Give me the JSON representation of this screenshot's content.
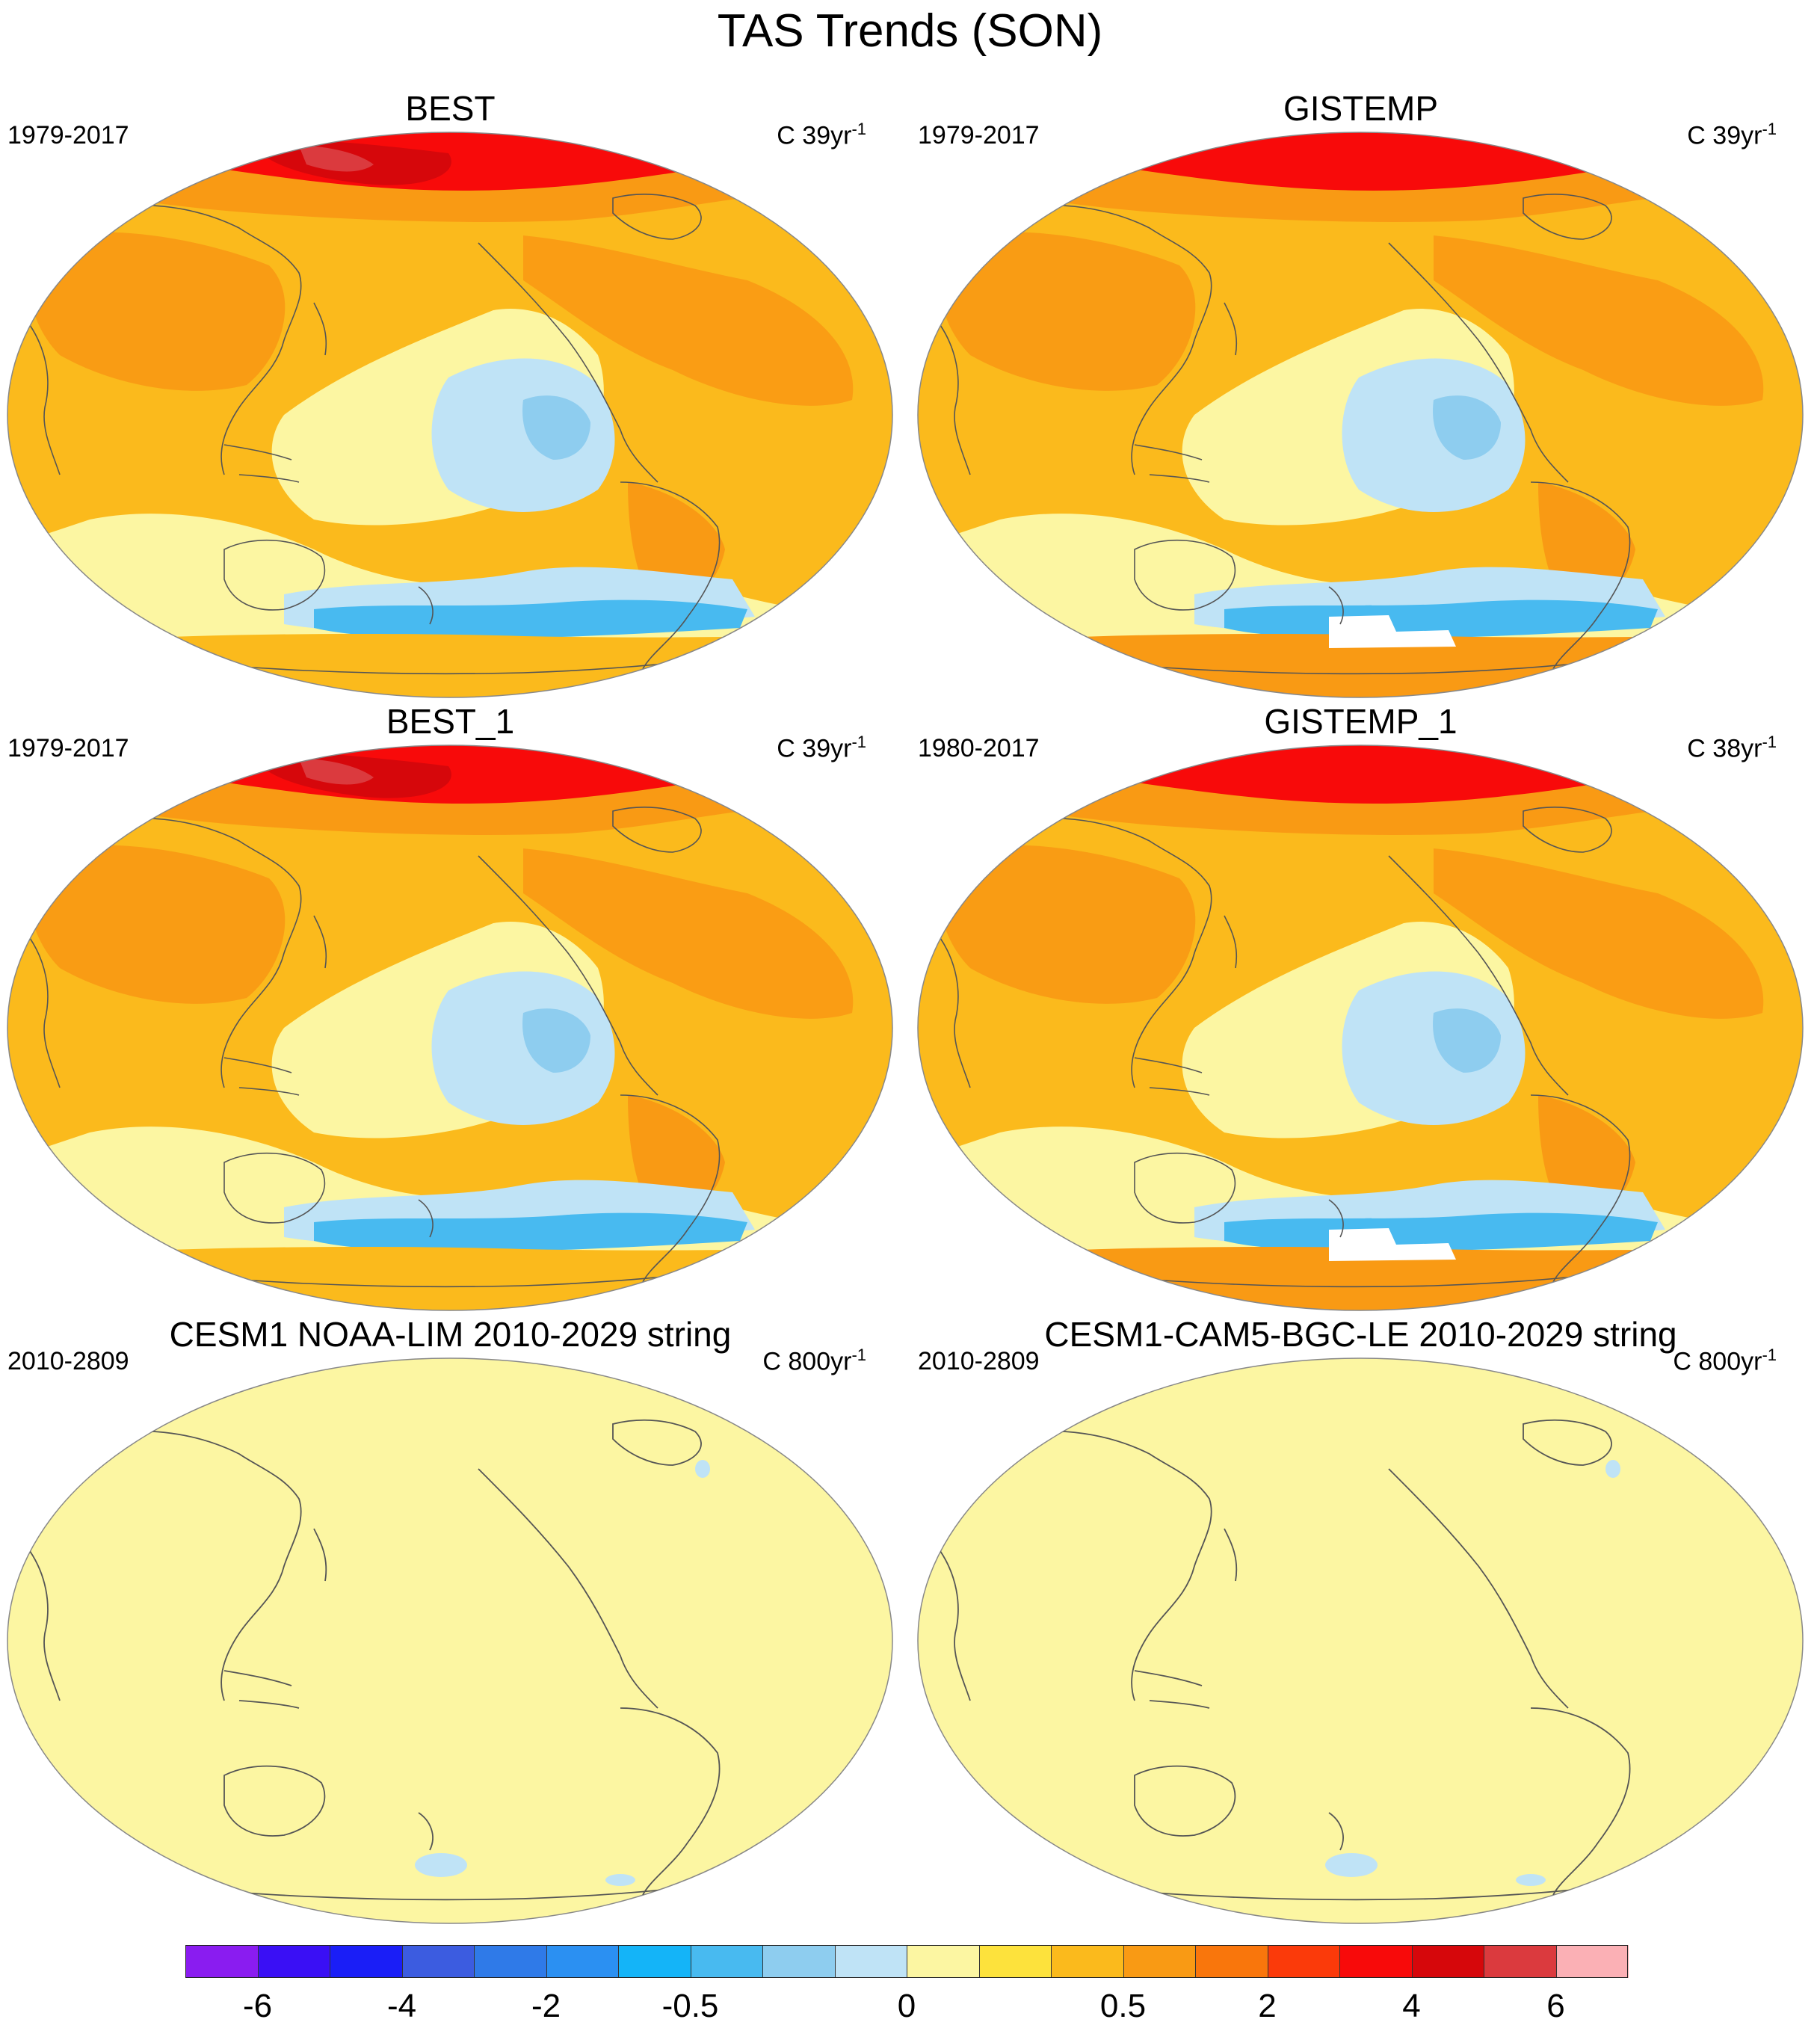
{
  "figure": {
    "title": "TAS Trends (SON)"
  },
  "panels": [
    {
      "title": "BEST",
      "period": "1979-2017",
      "units_prefix": "C 39yr",
      "units_exp": "-1",
      "field": "best"
    },
    {
      "title": "GISTEMP",
      "period": "1979-2017",
      "units_prefix": "C 39yr",
      "units_exp": "-1",
      "field": "gistemp"
    },
    {
      "title": "BEST_1",
      "period": "1979-2017",
      "units_prefix": "C 39yr",
      "units_exp": "-1",
      "field": "best"
    },
    {
      "title": "GISTEMP_1",
      "period": "1980-2017",
      "units_prefix": "C 38yr",
      "units_exp": "-1",
      "field": "gistemp"
    },
    {
      "title": "CESM1 NOAA-LIM 2010-2029 string",
      "period": "2010-2809",
      "units_prefix": "C 800yr",
      "units_exp": "-1",
      "field": "flat"
    },
    {
      "title": "CESM1-CAM5-BGC-LE 2010-2029 string",
      "period": "2010-2809",
      "units_prefix": "C 800yr",
      "units_exp": "-1",
      "field": "flat"
    }
  ],
  "colorbar": {
    "colors": [
      "#8a1cf0",
      "#3a0ff5",
      "#1a1ef7",
      "#3c5ce0",
      "#2f7ae8",
      "#2b90f2",
      "#14b4f8",
      "#48baf0",
      "#8ecdef",
      "#bfe3f6",
      "#fcf6a2",
      "#fde23c",
      "#fbba1c",
      "#f99a14",
      "#f9760c",
      "#fb3a0a",
      "#f80a0a",
      "#d6070b",
      "#db3a3e",
      "#fbb0b5"
    ],
    "labels": [
      "-6",
      "-4",
      "-2",
      "-0.5",
      "0",
      "0.5",
      "2",
      "4",
      "6"
    ]
  },
  "map_colors": {
    "background": "#fcf6a2",
    "ocean_warm": "#fbba1c",
    "land_warm": "#f99a14",
    "arctic": "#f80a0a",
    "arctic_dark": "#d6070b",
    "arctic_rose": "#db3a3e",
    "cool_light": "#bfe3f6",
    "cool_mid": "#8ecdef",
    "cool_strong": "#48baf0",
    "cool_deep": "#2b90f2",
    "missing": "#ffffff",
    "coast": "#555555"
  }
}
